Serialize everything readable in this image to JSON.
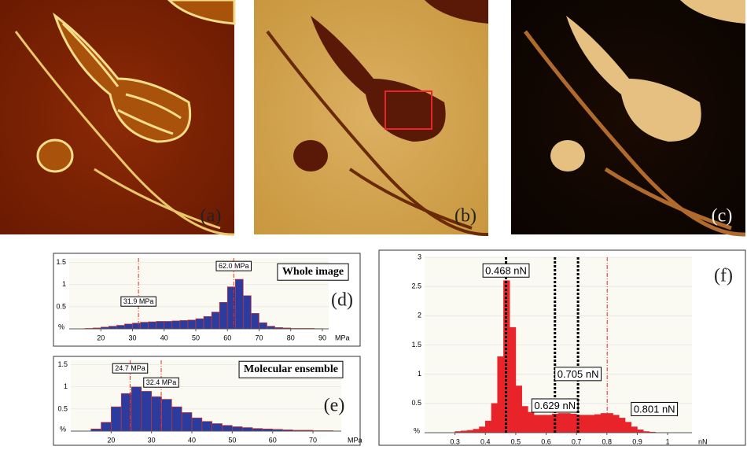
{
  "images": [
    {
      "label": "(a)"
    },
    {
      "label": "(b)"
    },
    {
      "label": "(c)"
    }
  ],
  "chart_data": [
    {
      "type": "histogram",
      "panel_label": "(d)",
      "note": "Whole image",
      "xlabel": "MPa",
      "ylabel": "%",
      "color": "#2c3c9e",
      "edgecolor": "#e8321c",
      "bins": [
        15,
        17.5,
        20,
        22.5,
        25,
        27.5,
        30,
        32.5,
        35,
        37.5,
        40,
        42.5,
        45,
        47.5,
        50,
        52.5,
        55,
        57.5,
        60,
        62.5,
        65,
        67.5,
        70,
        72.5,
        75,
        77.5,
        80,
        82.5,
        85,
        87.5,
        90
      ],
      "counts": [
        0.01,
        0.02,
        0.04,
        0.06,
        0.08,
        0.11,
        0.13,
        0.15,
        0.16,
        0.17,
        0.17,
        0.18,
        0.19,
        0.2,
        0.23,
        0.28,
        0.38,
        0.6,
        0.95,
        1.12,
        0.75,
        0.35,
        0.14,
        0.06,
        0.03,
        0.02,
        0.01,
        0.01,
        0.01,
        0.005
      ],
      "xlim": [
        10,
        92
      ],
      "xticks": [
        20,
        30,
        40,
        50,
        60,
        70,
        80,
        90
      ],
      "ylim": [
        0,
        1.6
      ],
      "yticks": [
        0.5,
        1,
        1.5
      ],
      "annotations": [
        {
          "x": 31.9,
          "label": "31.9 MPa",
          "color": "#e8321c"
        },
        {
          "x": 62.0,
          "label": "62.0 MPa",
          "color": "#e8321c"
        }
      ]
    },
    {
      "type": "histogram",
      "panel_label": "(e)",
      "note": "Molecular ensemble",
      "xlabel": "MPa",
      "ylabel": "%",
      "color": "#2c3c9e",
      "edgecolor": "#e8321c",
      "bins": [
        15,
        17.5,
        20,
        22.5,
        25,
        27.5,
        30,
        32.5,
        35,
        37.5,
        40,
        42.5,
        45,
        47.5,
        50,
        52.5,
        55,
        57.5,
        60,
        62.5,
        65,
        67.5,
        70,
        72.5,
        75
      ],
      "counts": [
        0.05,
        0.2,
        0.55,
        0.85,
        1.0,
        0.9,
        0.78,
        0.72,
        0.55,
        0.42,
        0.3,
        0.22,
        0.17,
        0.13,
        0.1,
        0.08,
        0.06,
        0.05,
        0.04,
        0.03,
        0.02,
        0.02,
        0.01,
        0.01
      ],
      "xlim": [
        10,
        77
      ],
      "xticks": [
        20,
        30,
        40,
        50,
        60,
        70
      ],
      "ylim": [
        0,
        1.6
      ],
      "yticks": [
        0.5,
        1,
        1.5
      ],
      "annotations": [
        {
          "x": 24.7,
          "label": "24.7 MPa",
          "color": "#e8321c"
        },
        {
          "x": 32.4,
          "label": "32.4 MPa",
          "color": "#e8321c"
        }
      ]
    },
    {
      "type": "histogram",
      "panel_label": "(f)",
      "xlabel": "nN",
      "ylabel": "%",
      "color": "#e8242a",
      "edgecolor": "#e8242a",
      "bins": [
        0.3,
        0.32,
        0.34,
        0.36,
        0.38,
        0.4,
        0.42,
        0.44,
        0.46,
        0.48,
        0.5,
        0.52,
        0.54,
        0.56,
        0.58,
        0.6,
        0.62,
        0.64,
        0.66,
        0.68,
        0.7,
        0.72,
        0.74,
        0.76,
        0.78,
        0.8,
        0.82,
        0.84,
        0.86,
        0.88,
        0.9,
        0.92,
        0.94,
        0.96
      ],
      "counts": [
        0.02,
        0.03,
        0.04,
        0.06,
        0.1,
        0.2,
        0.5,
        1.3,
        2.6,
        1.8,
        0.8,
        0.45,
        0.35,
        0.3,
        0.3,
        0.3,
        0.32,
        0.33,
        0.33,
        0.32,
        0.3,
        0.3,
        0.3,
        0.31,
        0.33,
        0.33,
        0.3,
        0.25,
        0.18,
        0.1,
        0.05,
        0.02,
        0.01
      ],
      "xlim": [
        0.2,
        1.08
      ],
      "xticks": [
        0.3,
        0.4,
        0.5,
        0.6,
        0.7,
        0.8,
        0.9,
        1
      ],
      "ylim": [
        0,
        3
      ],
      "yticks": [
        0.5,
        1,
        1.5,
        2,
        2.5,
        3
      ],
      "annotations": [
        {
          "x": 0.468,
          "label": "0.468 nN",
          "color": "#000000"
        },
        {
          "x": 0.629,
          "label": "0.629 nN",
          "color": "#000000"
        },
        {
          "x": 0.705,
          "label": "0.705 nN",
          "color": "#000000"
        },
        {
          "x": 0.801,
          "label": "0.801 nN",
          "color": "#e8242a"
        }
      ]
    }
  ]
}
